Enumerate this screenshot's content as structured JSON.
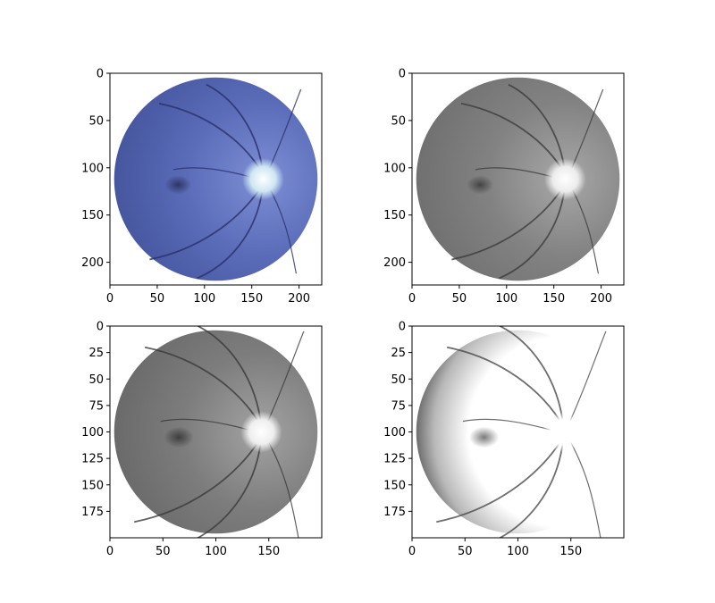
{
  "chart_data": [
    {
      "type": "image",
      "panel": "top-left",
      "image_content": "retinal fundus photograph, blue-tinted color",
      "colors": {
        "bg": "#3f4f96",
        "mid": "#5a6bb8",
        "light": "#7e8fd6",
        "disc": "#cfe6f2",
        "vessel": "#27306a",
        "macula": "#2d3662"
      },
      "xlim": [
        0,
        224
      ],
      "ylim": [
        224,
        0
      ],
      "xticks": [
        0,
        50,
        100,
        150,
        200
      ],
      "yticks": [
        0,
        50,
        100,
        150,
        200
      ],
      "optic_disc": [
        162,
        112
      ],
      "macula": [
        72,
        118
      ],
      "disc_radius": 17
    },
    {
      "type": "image",
      "panel": "top-right",
      "image_content": "retinal fundus photograph, grayscale",
      "colors": {
        "bg": "#6a6a6a",
        "mid": "#828282",
        "light": "#a8a8a8",
        "disc": "#ececec",
        "vessel": "#3c3c3c",
        "macula": "#444444"
      },
      "xlim": [
        0,
        224
      ],
      "ylim": [
        224,
        0
      ],
      "xticks": [
        0,
        50,
        100,
        150,
        200
      ],
      "yticks": [
        0,
        50,
        100,
        150,
        200
      ],
      "optic_disc": [
        162,
        112
      ],
      "macula": [
        72,
        118
      ],
      "disc_radius": 17
    },
    {
      "type": "image",
      "panel": "bottom-left",
      "image_content": "retinal fundus photograph, grayscale",
      "colors": {
        "bg": "#636363",
        "mid": "#7d7d7d",
        "light": "#a3a3a3",
        "disc": "#eeeeee",
        "vessel": "#3a3a3a",
        "macula": "#3e3e3e"
      },
      "xlim": [
        0,
        200
      ],
      "ylim": [
        200,
        0
      ],
      "xticks": [
        0,
        50,
        100,
        150
      ],
      "yticks": [
        0,
        25,
        50,
        75,
        100,
        125,
        150,
        175
      ],
      "optic_disc": [
        143,
        100
      ],
      "macula": [
        65,
        105
      ],
      "disc_radius": 15
    },
    {
      "type": "image",
      "panel": "bottom-right",
      "image_content": "retinal fundus, contrast-enhanced grayscale",
      "colors": {
        "bg": "#000000",
        "mid": "#b8b8b8",
        "light": "#ffffff",
        "disc": "#ffffff",
        "vessel": "#4a4a4a",
        "macula": "#7a7a7a"
      },
      "xlim": [
        0,
        200
      ],
      "ylim": [
        200,
        0
      ],
      "xticks": [
        0,
        50,
        100,
        150
      ],
      "yticks": [
        0,
        25,
        50,
        75,
        100,
        125,
        150,
        175
      ],
      "optic_disc": [
        143,
        100
      ],
      "macula": [
        68,
        105
      ],
      "disc_radius": 15
    }
  ]
}
